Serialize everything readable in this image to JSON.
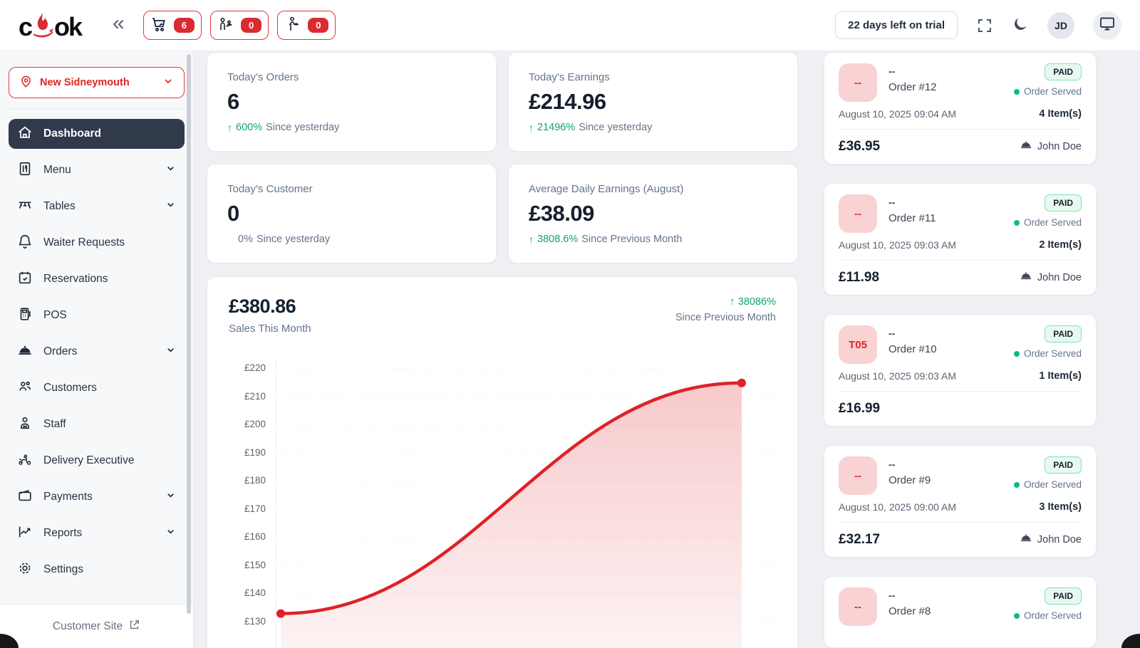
{
  "header": {
    "logo_text_left": "c",
    "logo_text_right": "ok",
    "trial_label": "22 days left on trial",
    "avatar_initials": "JD",
    "badges": [
      {
        "name": "cart-orders",
        "count": "6"
      },
      {
        "name": "waiter-requests",
        "count": "0"
      },
      {
        "name": "serve-ready",
        "count": "0"
      }
    ]
  },
  "sidebar": {
    "branch_selector": "New Sidneymouth",
    "items": [
      {
        "label": "Dashboard"
      },
      {
        "label": "Menu"
      },
      {
        "label": "Tables"
      },
      {
        "label": "Waiter Requests"
      },
      {
        "label": "Reservations"
      },
      {
        "label": "POS"
      },
      {
        "label": "Orders"
      },
      {
        "label": "Customers"
      },
      {
        "label": "Staff"
      },
      {
        "label": "Delivery Executive"
      },
      {
        "label": "Payments"
      },
      {
        "label": "Reports"
      },
      {
        "label": "Settings"
      }
    ],
    "footer_link": "Customer Site"
  },
  "stats": [
    {
      "title": "Today's Orders",
      "value": "6",
      "arrow": "↑",
      "delta": "600%",
      "suffix": "Since yesterday"
    },
    {
      "title": "Today's Earnings",
      "value": "£214.96",
      "arrow": "↑",
      "delta": "21496%",
      "suffix": "Since yesterday"
    },
    {
      "title": "Today's Customer",
      "value": "0",
      "arrow": "",
      "delta": "0%",
      "suffix": "Since yesterday"
    },
    {
      "title": "Average Daily Earnings (August)",
      "value": "£38.09",
      "arrow": "↑",
      "delta": "3808.6%",
      "suffix": "Since Previous Month"
    }
  ],
  "chart_card": {
    "total": "£380.86",
    "subtitle": "Sales This Month",
    "delta_arrow": "↑",
    "delta": "38086%",
    "delta_note": "Since Previous Month"
  },
  "chart_data": {
    "type": "area",
    "title": "Sales This Month",
    "series": [
      {
        "name": "Sales This Month",
        "values": [
          133,
          215
        ]
      }
    ],
    "y_ticks": [
      "£220",
      "£210",
      "£200",
      "£190",
      "£180",
      "£170",
      "£160",
      "£150",
      "£140",
      "£130"
    ],
    "ylim": [
      130,
      220
    ],
    "grid": "horizontal-dotted",
    "legend": "none",
    "line_color": "#df2127",
    "x_axis": "cut off below viewport; endpoint values estimated from gridlines"
  },
  "orders": [
    {
      "table": "--",
      "ref": "--",
      "order_no": "Order #12",
      "status": "PAID",
      "serve_status": "Order Served",
      "date": "August 10, 2025 09:04 AM",
      "items": "4 Item(s)",
      "total": "£36.95",
      "waiter": "John Doe"
    },
    {
      "table": "--",
      "ref": "--",
      "order_no": "Order #11",
      "status": "PAID",
      "serve_status": "Order Served",
      "date": "August 10, 2025 09:03 AM",
      "items": "2 Item(s)",
      "total": "£11.98",
      "waiter": "John Doe"
    },
    {
      "table": "T05",
      "ref": "--",
      "order_no": "Order #10",
      "status": "PAID",
      "serve_status": "Order Served",
      "date": "August 10, 2025 09:03 AM",
      "items": "1 Item(s)",
      "total": "£16.99",
      "waiter": ""
    },
    {
      "table": "--",
      "ref": "--",
      "order_no": "Order #9",
      "status": "PAID",
      "serve_status": "Order Served",
      "date": "August 10, 2025 09:00 AM",
      "items": "3 Item(s)",
      "total": "£32.17",
      "waiter": "John Doe"
    },
    {
      "table": "--",
      "ref": "--",
      "order_no": "Order #8",
      "status": "PAID",
      "serve_status": "Order Served",
      "date": "",
      "items": "",
      "total": "",
      "waiter": ""
    }
  ]
}
